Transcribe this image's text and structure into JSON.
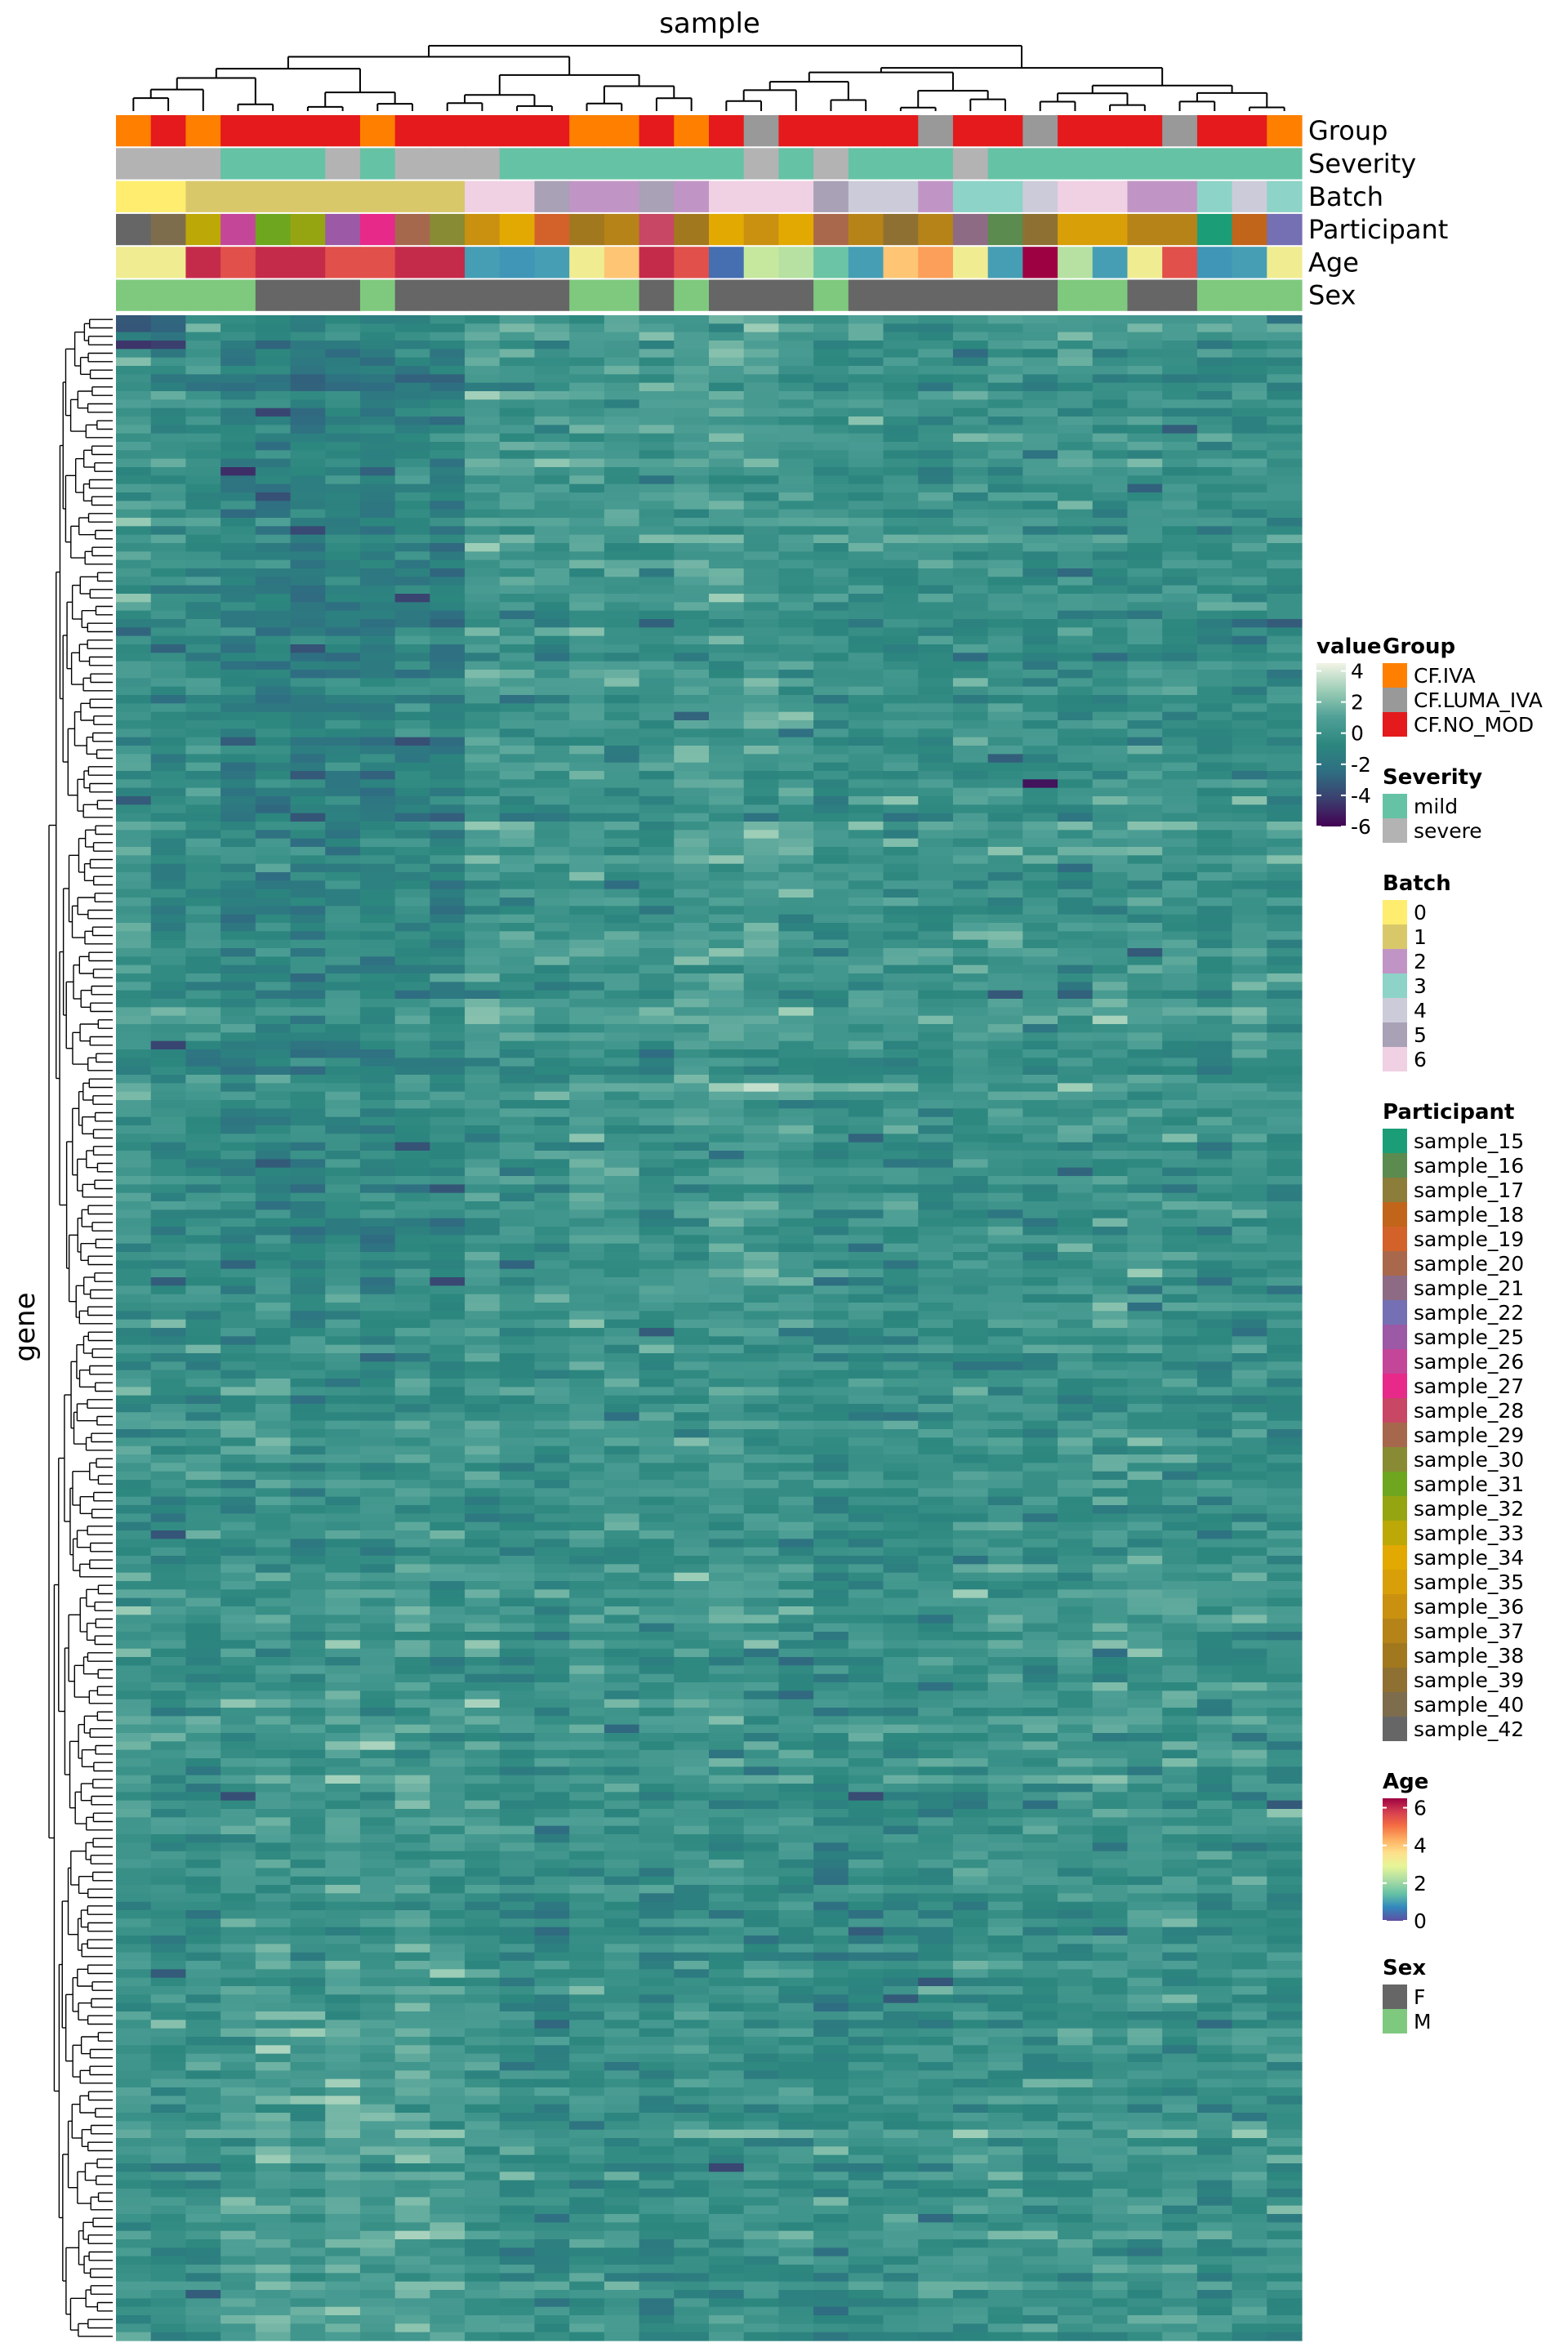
{
  "chart_data": {
    "type": "heatmap",
    "column_axis_label": "sample",
    "row_axis_label": "gene",
    "n_columns": 34,
    "n_rows": 240,
    "value_legend": {
      "title": "value",
      "ticks": [
        4,
        2,
        0,
        -2,
        -4,
        -6
      ],
      "range": [
        -6,
        4.5
      ],
      "colors": [
        "#440154",
        "#3b3f6e",
        "#2f6e82",
        "#2c877f",
        "#4fa096",
        "#9ccdb6",
        "#f2f4e6"
      ]
    },
    "annotation_tracks": [
      {
        "name": "Group",
        "values": [
          "CF.IVA",
          "CF.NO_MOD",
          "CF.IVA",
          "CF.NO_MOD",
          "CF.NO_MOD",
          "CF.NO_MOD",
          "CF.NO_MOD",
          "CF.IVA",
          "CF.NO_MOD",
          "CF.NO_MOD",
          "CF.NO_MOD",
          "CF.NO_MOD",
          "CF.NO_MOD",
          "CF.IVA",
          "CF.IVA",
          "CF.NO_MOD",
          "CF.IVA",
          "CF.NO_MOD",
          "CF.LUMA_IVA",
          "CF.NO_MOD",
          "CF.NO_MOD",
          "CF.NO_MOD",
          "CF.NO_MOD",
          "CF.LUMA_IVA",
          "CF.NO_MOD",
          "CF.NO_MOD",
          "CF.LUMA_IVA",
          "CF.NO_MOD",
          "CF.NO_MOD",
          "CF.NO_MOD",
          "CF.LUMA_IVA",
          "CF.NO_MOD",
          "CF.NO_MOD",
          "CF.IVA"
        ]
      },
      {
        "name": "Severity",
        "values": [
          "severe",
          "severe",
          "severe",
          "mild",
          "mild",
          "mild",
          "severe",
          "mild",
          "severe",
          "severe",
          "severe",
          "mild",
          "mild",
          "mild",
          "mild",
          "mild",
          "mild",
          "mild",
          "severe",
          "mild",
          "severe",
          "mild",
          "mild",
          "mild",
          "severe",
          "mild",
          "mild",
          "mild",
          "mild",
          "mild",
          "mild",
          "mild",
          "mild",
          "mild"
        ]
      },
      {
        "name": "Batch",
        "values": [
          "0",
          "0",
          "1",
          "1",
          "1",
          "1",
          "1",
          "1",
          "1",
          "1",
          "6",
          "6",
          "5",
          "2",
          "2",
          "5",
          "2",
          "6",
          "6",
          "6",
          "5",
          "4",
          "4",
          "2",
          "3",
          "3",
          "4",
          "6",
          "6",
          "2",
          "2",
          "3",
          "4",
          "3"
        ]
      },
      {
        "name": "Participant",
        "values": [
          "sample_42",
          "sample_40",
          "sample_33",
          "sample_26",
          "sample_31",
          "sample_32",
          "sample_25",
          "sample_27",
          "sample_29",
          "sample_30",
          "sample_36",
          "sample_34",
          "sample_19",
          "sample_38",
          "sample_37",
          "sample_28",
          "sample_38",
          "sample_34",
          "sample_36",
          "sample_34",
          "sample_20",
          "sample_37",
          "sample_39",
          "sample_37",
          "sample_21",
          "sample_16",
          "sample_39",
          "sample_35",
          "sample_35",
          "sample_37",
          "sample_37",
          "sample_15",
          "sample_18",
          "sample_22"
        ]
      },
      {
        "name": "Age",
        "values": [
          3.2,
          3.2,
          6,
          5.5,
          6,
          6,
          5.5,
          5.5,
          6,
          6,
          1,
          0.9,
          1,
          3.2,
          4,
          6,
          5.5,
          0.4,
          2.5,
          2.3,
          1.5,
          1,
          4,
          4.5,
          3.2,
          1,
          6.5,
          2.3,
          1,
          3.2,
          5.5,
          0.9,
          1,
          3.2
        ]
      },
      {
        "name": "Sex",
        "values": [
          "M",
          "M",
          "M",
          "M",
          "F",
          "F",
          "F",
          "M",
          "F",
          "F",
          "F",
          "F",
          "F",
          "M",
          "M",
          "F",
          "M",
          "F",
          "F",
          "F",
          "M",
          "F",
          "F",
          "F",
          "F",
          "F",
          "F",
          "M",
          "M",
          "F",
          "F",
          "M",
          "M",
          "M"
        ]
      }
    ],
    "legends": [
      {
        "title": "Group",
        "entries": [
          {
            "label": "CF.IVA",
            "color": "#ff7f00"
          },
          {
            "label": "CF.LUMA_IVA",
            "color": "#999999"
          },
          {
            "label": "CF.NO_MOD",
            "color": "#e41a1c"
          }
        ]
      },
      {
        "title": "Severity",
        "entries": [
          {
            "label": "mild",
            "color": "#66c2a5"
          },
          {
            "label": "severe",
            "color": "#b3b3b3"
          }
        ]
      },
      {
        "title": "Batch",
        "entries": [
          {
            "label": "0",
            "color": "#ffed6f"
          },
          {
            "label": "1",
            "color": "#d9c86a"
          },
          {
            "label": "2",
            "color": "#c095c5"
          },
          {
            "label": "3",
            "color": "#8dd3c7"
          },
          {
            "label": "4",
            "color": "#cccbda"
          },
          {
            "label": "5",
            "color": "#a9a1b6"
          },
          {
            "label": "6",
            "color": "#f0d0e3"
          }
        ]
      },
      {
        "title": "Participant",
        "entries": [
          {
            "label": "sample_15",
            "color": "#1b9e77"
          },
          {
            "label": "sample_16",
            "color": "#5b8b4f"
          },
          {
            "label": "sample_17",
            "color": "#8c7d3a"
          },
          {
            "label": "sample_18",
            "color": "#c1651b"
          },
          {
            "label": "sample_19",
            "color": "#d2622a"
          },
          {
            "label": "sample_20",
            "color": "#a9684b"
          },
          {
            "label": "sample_21",
            "color": "#8d6b85"
          },
          {
            "label": "sample_22",
            "color": "#7570b3"
          },
          {
            "label": "sample_25",
            "color": "#9b59a6"
          },
          {
            "label": "sample_26",
            "color": "#c44699"
          },
          {
            "label": "sample_27",
            "color": "#e7298a"
          },
          {
            "label": "sample_28",
            "color": "#c74764"
          },
          {
            "label": "sample_29",
            "color": "#a6684c"
          },
          {
            "label": "sample_30",
            "color": "#898a34"
          },
          {
            "label": "sample_31",
            "color": "#6ea61f"
          },
          {
            "label": "sample_32",
            "color": "#95a511"
          },
          {
            "label": "sample_33",
            "color": "#bca806"
          },
          {
            "label": "sample_34",
            "color": "#e2a903"
          },
          {
            "label": "sample_35",
            "color": "#d89f08"
          },
          {
            "label": "sample_36",
            "color": "#c9910f"
          },
          {
            "label": "sample_37",
            "color": "#b68318"
          },
          {
            "label": "sample_38",
            "color": "#a2781f"
          },
          {
            "label": "sample_39",
            "color": "#8f7033"
          },
          {
            "label": "sample_40",
            "color": "#7d6d4d"
          },
          {
            "label": "sample_42",
            "color": "#666666"
          }
        ]
      },
      {
        "title": "Age",
        "type": "continuous",
        "ticks": [
          6,
          4,
          2,
          0
        ],
        "range": [
          0,
          6.5
        ],
        "colors": [
          "#5e4fa2",
          "#3288bd",
          "#66c2a5",
          "#abdda4",
          "#e6f598",
          "#fee08b",
          "#fdae61",
          "#f46d43",
          "#d53e4f",
          "#9e0142"
        ]
      },
      {
        "title": "Sex",
        "entries": [
          {
            "label": "F",
            "color": "#666666"
          },
          {
            "label": "M",
            "color": "#7fc97f"
          }
        ]
      }
    ]
  }
}
